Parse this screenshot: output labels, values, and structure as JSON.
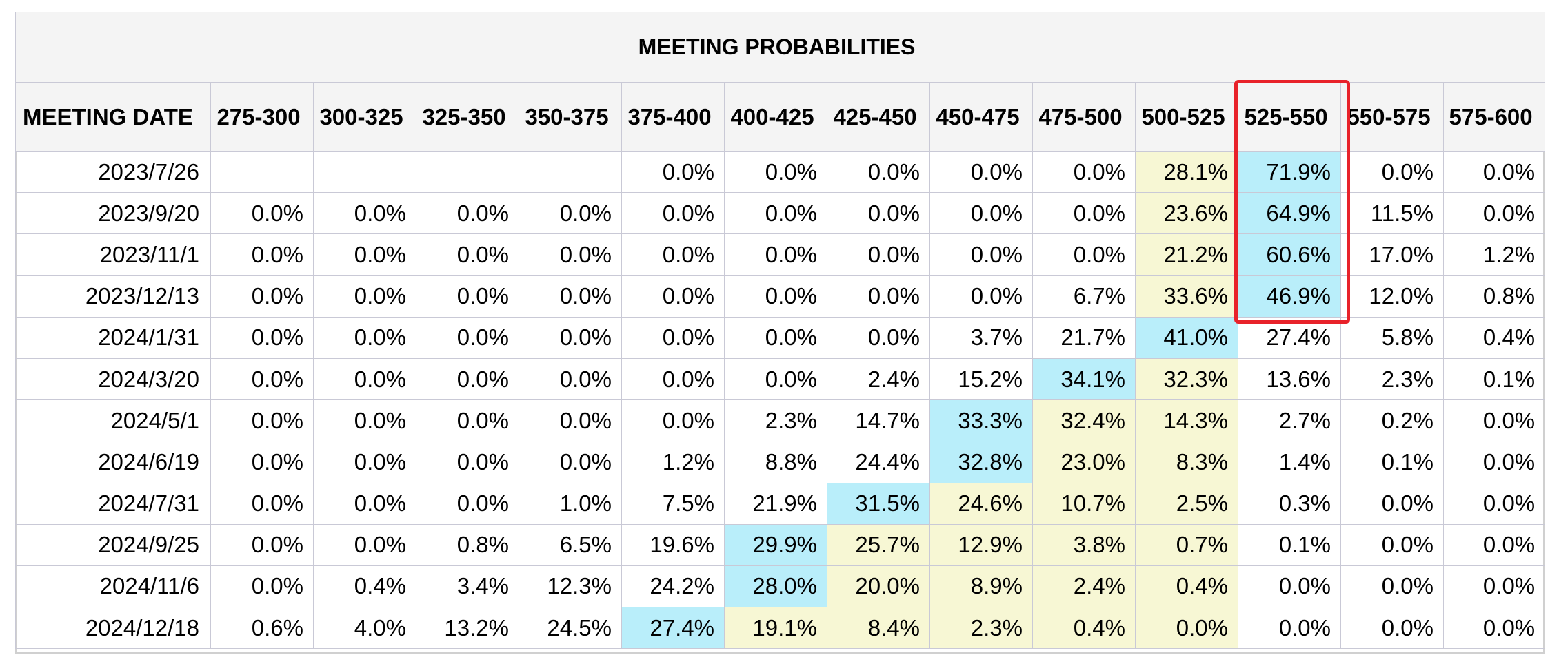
{
  "table": {
    "title": "MEETING PROBABILITIES",
    "date_header": "MEETING DATE",
    "columns": [
      "275-300",
      "300-325",
      "325-350",
      "350-375",
      "375-400",
      "400-425",
      "425-450",
      "450-475",
      "475-500",
      "500-525",
      "525-550",
      "550-575",
      "575-600"
    ],
    "rows": [
      {
        "date": "2023/7/26",
        "values": [
          "",
          "",
          "",
          "",
          "0.0%",
          "0.0%",
          "0.0%",
          "0.0%",
          "0.0%",
          "28.1%",
          "71.9%",
          "0.0%",
          "0.0%"
        ],
        "shade": [
          "",
          "",
          "",
          "",
          "",
          "",
          "",
          "",
          "",
          "y",
          "c",
          "",
          ""
        ]
      },
      {
        "date": "2023/9/20",
        "values": [
          "0.0%",
          "0.0%",
          "0.0%",
          "0.0%",
          "0.0%",
          "0.0%",
          "0.0%",
          "0.0%",
          "0.0%",
          "23.6%",
          "64.9%",
          "11.5%",
          "0.0%"
        ],
        "shade": [
          "",
          "",
          "",
          "",
          "",
          "",
          "",
          "",
          "",
          "y",
          "c",
          "",
          ""
        ]
      },
      {
        "date": "2023/11/1",
        "values": [
          "0.0%",
          "0.0%",
          "0.0%",
          "0.0%",
          "0.0%",
          "0.0%",
          "0.0%",
          "0.0%",
          "0.0%",
          "21.2%",
          "60.6%",
          "17.0%",
          "1.2%"
        ],
        "shade": [
          "",
          "",
          "",
          "",
          "",
          "",
          "",
          "",
          "",
          "y",
          "c",
          "",
          ""
        ]
      },
      {
        "date": "2023/12/13",
        "values": [
          "0.0%",
          "0.0%",
          "0.0%",
          "0.0%",
          "0.0%",
          "0.0%",
          "0.0%",
          "0.0%",
          "6.7%",
          "33.6%",
          "46.9%",
          "12.0%",
          "0.8%"
        ],
        "shade": [
          "",
          "",
          "",
          "",
          "",
          "",
          "",
          "",
          "",
          "y",
          "c",
          "",
          ""
        ]
      },
      {
        "date": "2024/1/31",
        "values": [
          "0.0%",
          "0.0%",
          "0.0%",
          "0.0%",
          "0.0%",
          "0.0%",
          "0.0%",
          "3.7%",
          "21.7%",
          "41.0%",
          "27.4%",
          "5.8%",
          "0.4%"
        ],
        "shade": [
          "",
          "",
          "",
          "",
          "",
          "",
          "",
          "",
          "",
          "c",
          "",
          "",
          ""
        ]
      },
      {
        "date": "2024/3/20",
        "values": [
          "0.0%",
          "0.0%",
          "0.0%",
          "0.0%",
          "0.0%",
          "0.0%",
          "2.4%",
          "15.2%",
          "34.1%",
          "32.3%",
          "13.6%",
          "2.3%",
          "0.1%"
        ],
        "shade": [
          "",
          "",
          "",
          "",
          "",
          "",
          "",
          "",
          "c",
          "y",
          "",
          "",
          ""
        ]
      },
      {
        "date": "2024/5/1",
        "values": [
          "0.0%",
          "0.0%",
          "0.0%",
          "0.0%",
          "0.0%",
          "2.3%",
          "14.7%",
          "33.3%",
          "32.4%",
          "14.3%",
          "2.7%",
          "0.2%",
          "0.0%"
        ],
        "shade": [
          "",
          "",
          "",
          "",
          "",
          "",
          "",
          "c",
          "y",
          "y",
          "",
          "",
          ""
        ]
      },
      {
        "date": "2024/6/19",
        "values": [
          "0.0%",
          "0.0%",
          "0.0%",
          "0.0%",
          "1.2%",
          "8.8%",
          "24.4%",
          "32.8%",
          "23.0%",
          "8.3%",
          "1.4%",
          "0.1%",
          "0.0%"
        ],
        "shade": [
          "",
          "",
          "",
          "",
          "",
          "",
          "",
          "c",
          "y",
          "y",
          "",
          "",
          ""
        ]
      },
      {
        "date": "2024/7/31",
        "values": [
          "0.0%",
          "0.0%",
          "0.0%",
          "1.0%",
          "7.5%",
          "21.9%",
          "31.5%",
          "24.6%",
          "10.7%",
          "2.5%",
          "0.3%",
          "0.0%",
          "0.0%"
        ],
        "shade": [
          "",
          "",
          "",
          "",
          "",
          "",
          "c",
          "y",
          "y",
          "y",
          "",
          "",
          ""
        ]
      },
      {
        "date": "2024/9/25",
        "values": [
          "0.0%",
          "0.0%",
          "0.8%",
          "6.5%",
          "19.6%",
          "29.9%",
          "25.7%",
          "12.9%",
          "3.8%",
          "0.7%",
          "0.1%",
          "0.0%",
          "0.0%"
        ],
        "shade": [
          "",
          "",
          "",
          "",
          "",
          "c",
          "y",
          "y",
          "y",
          "y",
          "",
          "",
          ""
        ]
      },
      {
        "date": "2024/11/6",
        "values": [
          "0.0%",
          "0.4%",
          "3.4%",
          "12.3%",
          "24.2%",
          "28.0%",
          "20.0%",
          "8.9%",
          "2.4%",
          "0.4%",
          "0.0%",
          "0.0%",
          "0.0%"
        ],
        "shade": [
          "",
          "",
          "",
          "",
          "",
          "c",
          "y",
          "y",
          "y",
          "y",
          "",
          "",
          ""
        ]
      },
      {
        "date": "2024/12/18",
        "values": [
          "0.6%",
          "4.0%",
          "13.2%",
          "24.5%",
          "27.4%",
          "19.1%",
          "8.4%",
          "2.3%",
          "0.4%",
          "0.0%",
          "0.0%",
          "0.0%",
          "0.0%"
        ],
        "shade": [
          "",
          "",
          "",
          "",
          "c",
          "y",
          "y",
          "y",
          "y",
          "y",
          "",
          "",
          ""
        ]
      }
    ]
  },
  "colors": {
    "header_bg": "#f4f4f4",
    "yellow_cell": "#f7f7d4",
    "cyan_cell": "#b9eefa",
    "highlight_border": "#e8222a",
    "grid": "#c9c9d6"
  },
  "annotation": {
    "highlight": "red-box-around-525-550-column-first-four-rows"
  }
}
